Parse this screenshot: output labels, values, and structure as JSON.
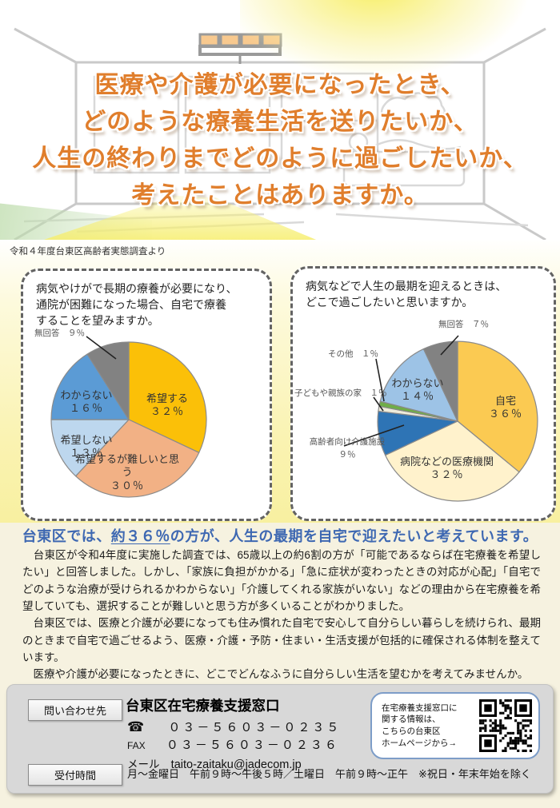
{
  "header": {
    "title_lines": [
      "医療や介護が必要になったとき、",
      "どのような療養生活を送りたいか、",
      "人生の終わりまでどのように過ごしたいか、",
      "考えたことはありますか。"
    ],
    "title_color": "#e07e2c"
  },
  "survey_source": "令和４年度台東区高齢者実態調査より",
  "chart_data": [
    {
      "type": "pie",
      "title": "病気やけがで長期の療養が必要になり、通院が困難になった場合、自宅で療養することを望みますか。",
      "question_lines": [
        "病気やけがで長期の療養が必要になり、",
        "通院が困難になった場合、自宅で療養",
        "することを望みますか。"
      ],
      "labels": [
        "希望する",
        "希望するが難しいと思う",
        "希望しない",
        "わからない",
        "無回答"
      ],
      "values": [
        32,
        30,
        13,
        16,
        9
      ],
      "display": [
        "３２％",
        "３０％",
        "１３％",
        "１６％",
        "９％"
      ],
      "colors": [
        "#fbc008",
        "#f2b185",
        "#bdd7ee",
        "#5b9bd5",
        "#828282"
      ],
      "start": "top",
      "direction": "clockwise",
      "legend": "none"
    },
    {
      "type": "pie",
      "title": "病気などで人生の最期を迎えるときは、どこで過ごしたいと思いますか。",
      "question_lines": [
        "病気などで人生の最期を迎えるときは、",
        "どこで過ごしたいと思いますか。"
      ],
      "labels": [
        "自宅",
        "病院などの医療機関",
        "高齢者向け介護施設",
        "子どもや親族の家",
        "その他",
        "わからない",
        "無回答"
      ],
      "values": [
        36,
        32,
        9,
        1,
        1,
        14,
        7
      ],
      "display": [
        "３６％",
        "３２％",
        "９％",
        "１％",
        "１％",
        "１４％",
        "７％"
      ],
      "colors": [
        "#fbca52",
        "#fff2cc",
        "#2e74b5",
        "#efecdb",
        "#6fad47",
        "#9dc3e6",
        "#828282"
      ],
      "start": "top",
      "direction": "clockwise",
      "legend": "none"
    }
  ],
  "headline": {
    "pre": "台東区では、",
    "em": "約３６％",
    "post": "の方が、人生の最期を自宅で迎えたいと考えています。",
    "color": "#3e68b2"
  },
  "paragraphs": [
    "　台東区が令和4年度に実施した調査では、65歳以上の約6割の方が「可能であるならば在宅療養を希望したい」と回答しました。しかし、「家族に負担がかかる」「急に症状が変わったときの対応が心配」「自宅でどのような治療が受けられるかわからない」「介護してくれる家族がいない」などの理由から在宅療養を希望していても、選択することが難しいと思う方が多くいることがわかりました。",
    "　台東区では、医療と介護が必要になっても住み慣れた自宅で安心して自分らしい暮らしを続けられ、最期のときまで自宅で過ごせるよう、医療・介護・予防・住まい・生活支援が包括的に確保される体制を整えています。",
    "　医療や介護が必要になったときに、どこでどんなふうに自分らしい生活を望むかを考えてみませんか。"
  ],
  "contact": {
    "inquiry_label": "問い合わせ先",
    "office_name": "台東区在宅療養支援窓口",
    "tel_icon": "☎",
    "tel": "０３－５６０３－０２３５",
    "fax_label": "FAX",
    "fax": "０３－５６０３－０２３６",
    "mail_label": "メール",
    "mail": "taito-zaitaku@jadecom.jp",
    "hours_label": "受付時間",
    "hours": "月～金曜日　午前９時～午後５時／土曜日　午前９時～正午　※祝日・年末年始を除く",
    "qr_caption_lines": [
      "在宅療養支援窓口に",
      "関する情報は、",
      "こちらの台東区",
      "ホームページから→"
    ]
  }
}
